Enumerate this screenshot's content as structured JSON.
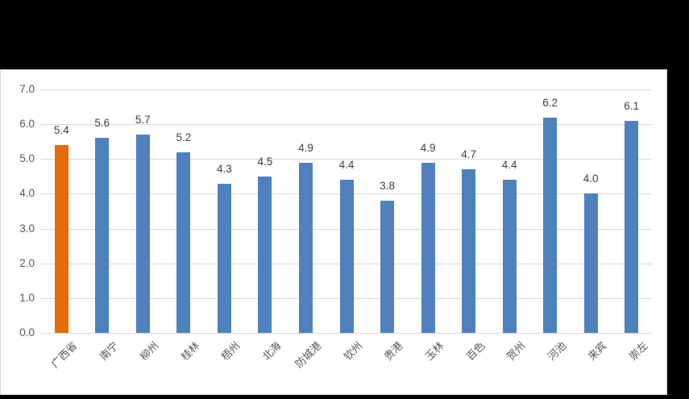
{
  "chart_data": {
    "type": "bar",
    "title": "",
    "xlabel": "",
    "ylabel": "",
    "categories": [
      "广西省",
      "南宁",
      "柳州",
      "桂林",
      "梧州",
      "北海",
      "防城港",
      "钦州",
      "贵港",
      "玉林",
      "百色",
      "贺州",
      "河池",
      "来宾",
      "崇左"
    ],
    "values": [
      5.4,
      5.6,
      5.7,
      5.2,
      4.3,
      4.5,
      4.9,
      4.4,
      3.8,
      4.9,
      4.7,
      4.4,
      6.2,
      4.0,
      6.1
    ],
    "value_labels": [
      "5.4",
      "5.6",
      "5.7",
      "5.2",
      "4.3",
      "4.5",
      "4.9",
      "4.4",
      "3.8",
      "4.9",
      "4.7",
      "4.4",
      "6.2",
      "4.0",
      "6.1"
    ],
    "highlight_category": "广西省",
    "highlight_index": 0,
    "ylim": [
      0,
      7
    ],
    "ytick_step": 1,
    "ytick_labels": [
      "0.0",
      "1.0",
      "2.0",
      "3.0",
      "4.0",
      "5.0",
      "6.0",
      "7.0"
    ],
    "grid": true,
    "legend": "none",
    "colors": {
      "page_background": "#000000",
      "chart_background": "#FFFFFF",
      "chart_border": "#D7D7D7",
      "gridline": "#D9D9D9",
      "bar_default": "#4F81BD",
      "bar_highlight": "#E36C09",
      "axis_text": "#595959",
      "value_label_text": "#404040"
    }
  }
}
